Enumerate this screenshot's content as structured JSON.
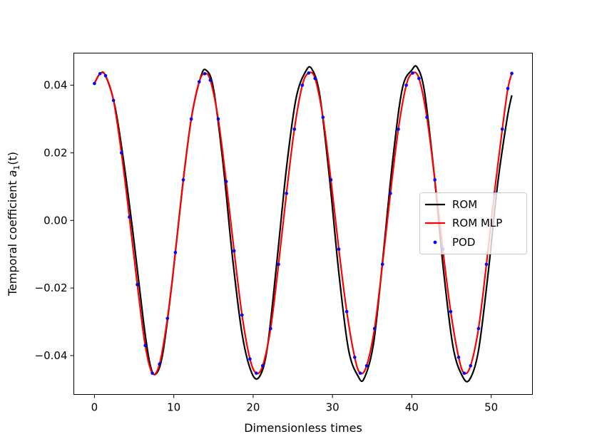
{
  "chart_data": {
    "type": "line",
    "xlabel": "Dimensionless times",
    "ylabel": "Temporal coefficient",
    "ylabel_math_symbol": "a",
    "ylabel_math_subscript": "1",
    "ylabel_math_suffix": "(t)",
    "xlim": [
      -2.6,
      55.2
    ],
    "ylim": [
      -0.0515,
      0.0495
    ],
    "xticks": [
      0,
      10,
      20,
      30,
      40,
      50
    ],
    "xtick_labels": [
      "0",
      "10",
      "20",
      "30",
      "40",
      "50"
    ],
    "yticks": [
      0.04,
      0.02,
      0.0,
      -0.02,
      -0.04
    ],
    "ytick_labels": [
      "0.04",
      "0.02",
      "0.00",
      "−0.02",
      "−0.04"
    ],
    "grid": false,
    "legend_position": "center-right",
    "series": [
      {
        "name": "ROM",
        "style": "line",
        "color": "#000000",
        "points": [
          [
            0.0,
            0.0405
          ],
          [
            0.7,
            0.0434
          ],
          [
            1.4,
            0.0428
          ],
          [
            2.6,
            0.0335
          ],
          [
            3.8,
            0.0155
          ],
          [
            5.0,
            -0.0065
          ],
          [
            6.2,
            -0.0303
          ],
          [
            7.0,
            -0.0425
          ],
          [
            7.7,
            -0.0455
          ],
          [
            8.6,
            -0.0395
          ],
          [
            9.8,
            -0.018
          ],
          [
            11.0,
            0.008
          ],
          [
            12.2,
            0.03
          ],
          [
            13.4,
            0.0425
          ],
          [
            14.1,
            0.0444
          ],
          [
            15.0,
            0.039
          ],
          [
            16.2,
            0.017
          ],
          [
            17.4,
            -0.011
          ],
          [
            18.6,
            -0.0335
          ],
          [
            19.8,
            -0.045
          ],
          [
            20.8,
            -0.0462
          ],
          [
            21.8,
            -0.0375
          ],
          [
            23.0,
            -0.012
          ],
          [
            24.2,
            0.0155
          ],
          [
            25.4,
            0.036
          ],
          [
            26.6,
            0.044
          ],
          [
            27.4,
            0.0448
          ],
          [
            28.4,
            0.037
          ],
          [
            29.6,
            0.013
          ],
          [
            30.8,
            -0.0155
          ],
          [
            32.0,
            -0.038
          ],
          [
            33.2,
            -0.046
          ],
          [
            34.0,
            -0.0467
          ],
          [
            35.2,
            -0.036
          ],
          [
            36.4,
            -0.01
          ],
          [
            37.6,
            0.018
          ],
          [
            38.8,
            0.039
          ],
          [
            40.0,
            0.0445
          ],
          [
            40.7,
            0.0452
          ],
          [
            41.6,
            0.038
          ],
          [
            42.8,
            0.014
          ],
          [
            44.0,
            -0.015
          ],
          [
            45.2,
            -0.0375
          ],
          [
            46.4,
            -0.0462
          ],
          [
            47.3,
            -0.047
          ],
          [
            48.4,
            -0.0385
          ],
          [
            49.6,
            -0.016
          ],
          [
            50.8,
            0.0105
          ],
          [
            52.0,
            0.03
          ],
          [
            52.6,
            0.037
          ]
        ]
      },
      {
        "name": "ROM MLP",
        "style": "line",
        "color": "#ff0000",
        "points": [
          [
            0.0,
            0.0405
          ],
          [
            0.7,
            0.0434
          ],
          [
            1.4,
            0.0428
          ],
          [
            2.4,
            0.0355
          ],
          [
            3.4,
            0.02
          ],
          [
            4.4,
            0.001
          ],
          [
            5.4,
            -0.019
          ],
          [
            6.4,
            -0.037
          ],
          [
            7.3,
            -0.0452
          ],
          [
            8.2,
            -0.0425
          ],
          [
            9.2,
            -0.029
          ],
          [
            10.2,
            -0.0095
          ],
          [
            11.2,
            0.012
          ],
          [
            12.2,
            0.03
          ],
          [
            13.2,
            0.041
          ],
          [
            13.9,
            0.0434
          ],
          [
            14.6,
            0.0415
          ],
          [
            15.6,
            0.03
          ],
          [
            16.6,
            0.0115
          ],
          [
            17.6,
            -0.009
          ],
          [
            18.6,
            -0.028
          ],
          [
            19.6,
            -0.041
          ],
          [
            20.4,
            -0.0452
          ],
          [
            21.2,
            -0.043
          ],
          [
            22.2,
            -0.032
          ],
          [
            23.2,
            -0.013
          ],
          [
            24.2,
            0.008
          ],
          [
            25.2,
            0.027
          ],
          [
            26.2,
            0.04
          ],
          [
            27.0,
            0.0436
          ],
          [
            27.8,
            0.042
          ],
          [
            28.8,
            0.0305
          ],
          [
            29.8,
            0.012
          ],
          [
            30.8,
            -0.0085
          ],
          [
            31.8,
            -0.027
          ],
          [
            32.8,
            -0.0405
          ],
          [
            33.5,
            -0.0452
          ],
          [
            34.3,
            -0.043
          ],
          [
            35.3,
            -0.032
          ],
          [
            36.3,
            -0.013
          ],
          [
            37.3,
            0.008
          ],
          [
            38.3,
            0.027
          ],
          [
            39.3,
            0.04
          ],
          [
            40.1,
            0.0436
          ],
          [
            40.9,
            0.042
          ],
          [
            41.9,
            0.0305
          ],
          [
            42.9,
            0.012
          ],
          [
            43.9,
            -0.0085
          ],
          [
            44.9,
            -0.027
          ],
          [
            45.9,
            -0.0405
          ],
          [
            46.6,
            -0.0452
          ],
          [
            47.4,
            -0.043
          ],
          [
            48.4,
            -0.032
          ],
          [
            49.4,
            -0.013
          ],
          [
            50.4,
            0.008
          ],
          [
            51.4,
            0.027
          ],
          [
            52.1,
            0.039
          ],
          [
            52.6,
            0.0435
          ]
        ]
      },
      {
        "name": "POD",
        "style": "markers",
        "color": "#0000ff",
        "points": [
          [
            0.0,
            0.0405
          ],
          [
            0.7,
            0.0434
          ],
          [
            1.4,
            0.0428
          ],
          [
            2.4,
            0.0355
          ],
          [
            3.4,
            0.02
          ],
          [
            4.4,
            0.001
          ],
          [
            5.4,
            -0.019
          ],
          [
            6.4,
            -0.037
          ],
          [
            7.3,
            -0.0452
          ],
          [
            8.2,
            -0.0425
          ],
          [
            9.2,
            -0.029
          ],
          [
            10.2,
            -0.0095
          ],
          [
            11.2,
            0.012
          ],
          [
            12.2,
            0.03
          ],
          [
            13.2,
            0.041
          ],
          [
            13.9,
            0.0434
          ],
          [
            14.6,
            0.0415
          ],
          [
            15.6,
            0.03
          ],
          [
            16.6,
            0.0115
          ],
          [
            17.6,
            -0.009
          ],
          [
            18.6,
            -0.028
          ],
          [
            19.6,
            -0.041
          ],
          [
            20.4,
            -0.0452
          ],
          [
            21.2,
            -0.043
          ],
          [
            22.2,
            -0.032
          ],
          [
            23.2,
            -0.013
          ],
          [
            24.2,
            0.008
          ],
          [
            25.2,
            0.027
          ],
          [
            26.2,
            0.04
          ],
          [
            27.0,
            0.0436
          ],
          [
            27.8,
            0.042
          ],
          [
            28.8,
            0.0305
          ],
          [
            29.8,
            0.012
          ],
          [
            30.8,
            -0.0085
          ],
          [
            31.8,
            -0.027
          ],
          [
            32.8,
            -0.0405
          ],
          [
            33.5,
            -0.0452
          ],
          [
            34.3,
            -0.043
          ],
          [
            35.3,
            -0.032
          ],
          [
            36.3,
            -0.013
          ],
          [
            37.3,
            0.008
          ],
          [
            38.3,
            0.027
          ],
          [
            39.3,
            0.04
          ],
          [
            40.1,
            0.0436
          ],
          [
            40.9,
            0.042
          ],
          [
            41.9,
            0.0305
          ],
          [
            42.9,
            0.012
          ],
          [
            43.9,
            -0.0085
          ],
          [
            44.9,
            -0.027
          ],
          [
            45.9,
            -0.0405
          ],
          [
            46.6,
            -0.0452
          ],
          [
            47.4,
            -0.043
          ],
          [
            48.4,
            -0.032
          ],
          [
            49.4,
            -0.013
          ],
          [
            50.4,
            0.008
          ],
          [
            51.4,
            0.027
          ],
          [
            52.1,
            0.039
          ],
          [
            52.6,
            0.0435
          ]
        ]
      }
    ]
  }
}
